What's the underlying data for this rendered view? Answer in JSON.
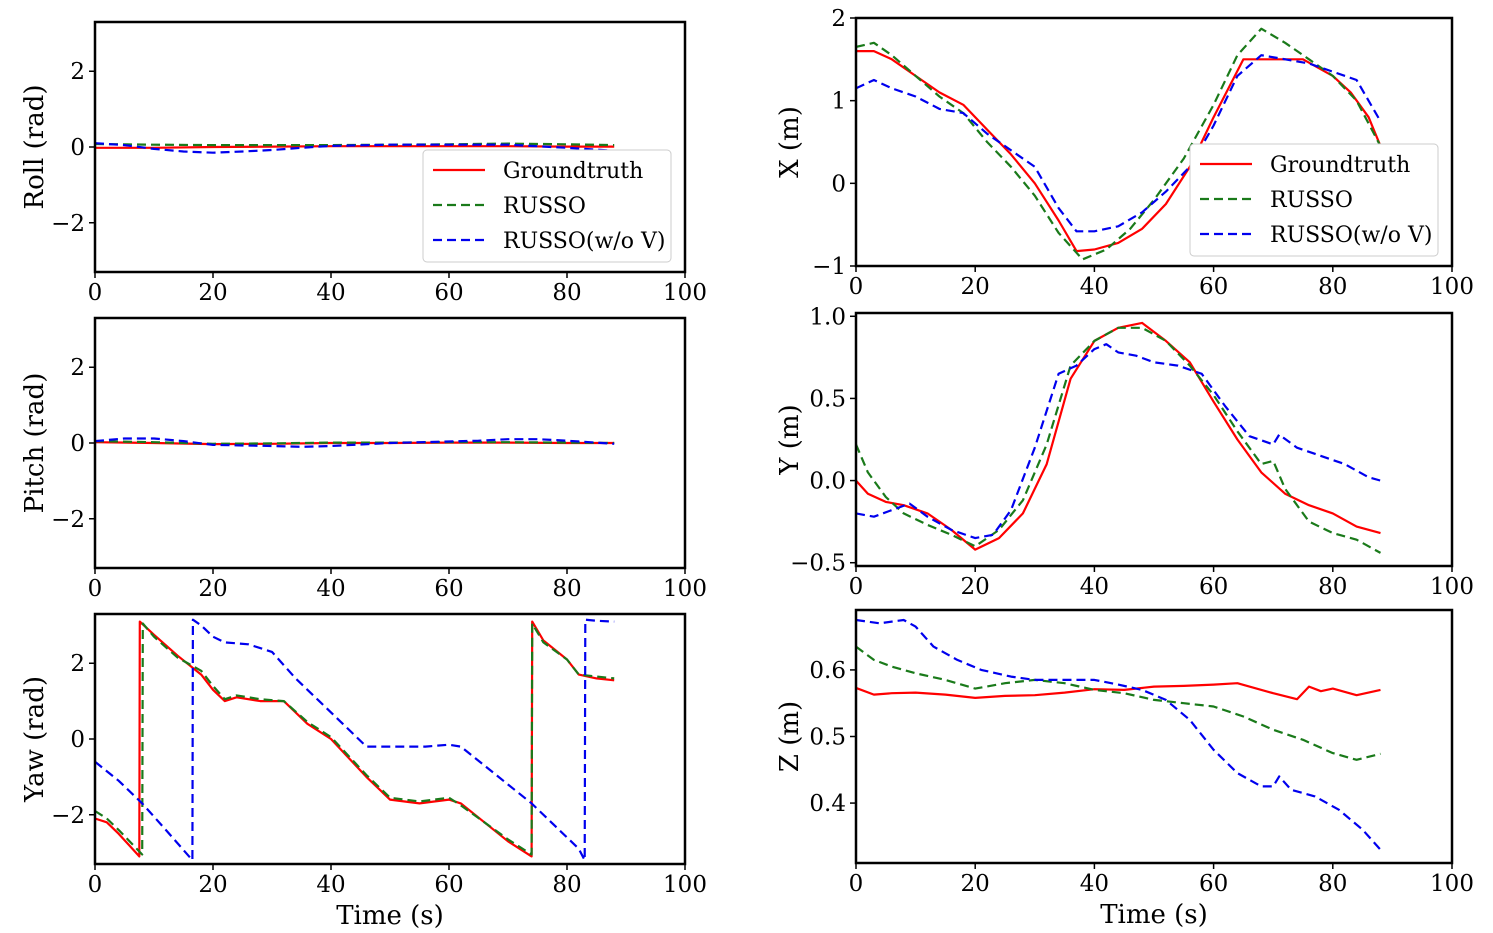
{
  "chart_data": [
    {
      "type": "line",
      "title": "",
      "xlabel": "",
      "ylabel": "Roll (rad)",
      "xlim": [
        0,
        100
      ],
      "ylim": [
        -3.3,
        3.3
      ],
      "xticks": [
        0,
        20,
        40,
        60,
        80,
        100
      ],
      "yticks": [
        -2,
        0,
        2
      ],
      "ytick_labels": [
        "−2",
        "0",
        "2"
      ],
      "legend": "bottom-right",
      "series": [
        {
          "name": "Groundtruth",
          "color": "#ff0000",
          "style": "solid",
          "x": [
            0,
            10,
            20,
            30,
            40,
            50,
            60,
            70,
            80,
            88
          ],
          "y": [
            -0.02,
            -0.02,
            0.0,
            0.01,
            0.02,
            0.02,
            0.02,
            0.02,
            0.01,
            0.01
          ]
        },
        {
          "name": "RUSSO",
          "color": "#1a7a1a",
          "style": "dashed",
          "x": [
            0,
            10,
            20,
            30,
            40,
            50,
            60,
            70,
            80,
            88
          ],
          "y": [
            0.08,
            0.06,
            0.05,
            0.05,
            0.05,
            0.06,
            0.07,
            0.09,
            0.07,
            0.05
          ]
        },
        {
          "name": "RUSSO(w/o V)",
          "color": "#0000ee",
          "style": "dashed",
          "x": [
            0,
            5,
            10,
            15,
            20,
            25,
            30,
            35,
            40,
            50,
            60,
            70,
            80,
            88
          ],
          "y": [
            0.1,
            0.05,
            -0.05,
            -0.12,
            -0.15,
            -0.12,
            -0.08,
            -0.02,
            0.03,
            0.06,
            0.06,
            0.06,
            -0.02,
            -0.1
          ]
        }
      ]
    },
    {
      "type": "line",
      "title": "",
      "xlabel": "",
      "ylabel": "X (m)",
      "xlim": [
        0,
        100
      ],
      "ylim": [
        -1.0,
        2.0
      ],
      "xticks": [
        0,
        20,
        40,
        60,
        80,
        100
      ],
      "yticks": [
        -1,
        0,
        1,
        2
      ],
      "ytick_labels": [
        "−1",
        "0",
        "1",
        "2"
      ],
      "legend": "bottom-right",
      "series": [
        {
          "name": "Groundtruth",
          "color": "#ff0000",
          "style": "solid",
          "x": [
            0,
            3,
            6,
            10,
            14,
            18,
            22,
            26,
            30,
            34,
            37,
            40,
            44,
            48,
            52,
            56,
            60,
            65,
            70,
            75,
            80,
            83,
            86,
            88
          ],
          "y": [
            1.6,
            1.6,
            1.5,
            1.3,
            1.1,
            0.95,
            0.65,
            0.35,
            0.0,
            -0.45,
            -0.82,
            -0.8,
            -0.72,
            -0.55,
            -0.25,
            0.2,
            0.8,
            1.5,
            1.5,
            1.5,
            1.3,
            1.1,
            0.8,
            0.45
          ]
        },
        {
          "name": "RUSSO",
          "color": "#1a7a1a",
          "style": "dashed",
          "x": [
            0,
            3,
            6,
            10,
            14,
            18,
            22,
            26,
            30,
            34,
            38,
            42,
            46,
            50,
            55,
            60,
            64,
            68,
            72,
            76,
            80,
            84,
            88
          ],
          "y": [
            1.65,
            1.7,
            1.55,
            1.3,
            1.05,
            0.85,
            0.5,
            0.2,
            -0.15,
            -0.6,
            -0.92,
            -0.8,
            -0.55,
            -0.2,
            0.3,
            0.95,
            1.55,
            1.87,
            1.7,
            1.5,
            1.3,
            1.0,
            0.45
          ]
        },
        {
          "name": "RUSSO(w/o V)",
          "color": "#0000ee",
          "style": "dashed",
          "x": [
            0,
            3,
            6,
            10,
            14,
            18,
            22,
            26,
            30,
            34,
            37,
            40,
            44,
            48,
            52,
            56,
            60,
            64,
            68,
            72,
            76,
            80,
            84,
            88
          ],
          "y": [
            1.15,
            1.25,
            1.15,
            1.05,
            0.9,
            0.85,
            0.6,
            0.4,
            0.2,
            -0.3,
            -0.58,
            -0.58,
            -0.52,
            -0.35,
            -0.1,
            0.2,
            0.7,
            1.3,
            1.55,
            1.5,
            1.45,
            1.35,
            1.25,
            0.75
          ]
        }
      ]
    },
    {
      "type": "line",
      "title": "",
      "xlabel": "",
      "ylabel": "Pitch (rad)",
      "xlim": [
        0,
        100
      ],
      "ylim": [
        -3.3,
        3.3
      ],
      "xticks": [
        0,
        20,
        40,
        60,
        80,
        100
      ],
      "yticks": [
        -2,
        0,
        2
      ],
      "ytick_labels": [
        "−2",
        "0",
        "2"
      ],
      "legend": "none",
      "series": [
        {
          "name": "Groundtruth",
          "color": "#ff0000",
          "style": "solid",
          "x": [
            0,
            10,
            20,
            30,
            40,
            50,
            60,
            70,
            80,
            88
          ],
          "y": [
            0.02,
            0.0,
            -0.03,
            -0.02,
            0.0,
            0.0,
            0.01,
            0.01,
            0.0,
            0.0
          ]
        },
        {
          "name": "RUSSO",
          "color": "#1a7a1a",
          "style": "dashed",
          "x": [
            0,
            10,
            20,
            30,
            40,
            50,
            60,
            70,
            80,
            88
          ],
          "y": [
            0.05,
            0.02,
            -0.02,
            -0.01,
            0.01,
            0.01,
            0.02,
            0.02,
            0.01,
            0.0
          ]
        },
        {
          "name": "RUSSO(w/o V)",
          "color": "#0000ee",
          "style": "dashed",
          "x": [
            0,
            5,
            10,
            15,
            20,
            30,
            35,
            40,
            50,
            60,
            65,
            70,
            75,
            80,
            88
          ],
          "y": [
            0.05,
            0.12,
            0.12,
            0.05,
            -0.05,
            -0.08,
            -0.1,
            -0.08,
            0.0,
            0.04,
            0.06,
            0.1,
            0.1,
            0.06,
            -0.02
          ]
        }
      ]
    },
    {
      "type": "line",
      "title": "",
      "xlabel": "",
      "ylabel": "Y (m)",
      "xlim": [
        0,
        100
      ],
      "ylim": [
        -0.52,
        1.02
      ],
      "xticks": [
        0,
        20,
        40,
        60,
        80,
        100
      ],
      "yticks": [
        -0.5,
        0.0,
        0.5,
        1.0
      ],
      "ytick_labels": [
        "−0.5",
        "0.0",
        "0.5",
        "1.0"
      ],
      "legend": "none",
      "series": [
        {
          "name": "Groundtruth",
          "color": "#ff0000",
          "style": "solid",
          "x": [
            0,
            2,
            5,
            8,
            12,
            16,
            20,
            24,
            28,
            32,
            36,
            40,
            44,
            48,
            52,
            56,
            60,
            64,
            68,
            72,
            76,
            80,
            84,
            88
          ],
          "y": [
            0.0,
            -0.08,
            -0.13,
            -0.15,
            -0.2,
            -0.3,
            -0.42,
            -0.35,
            -0.2,
            0.1,
            0.62,
            0.85,
            0.93,
            0.96,
            0.85,
            0.72,
            0.48,
            0.25,
            0.05,
            -0.08,
            -0.15,
            -0.2,
            -0.28,
            -0.32
          ]
        },
        {
          "name": "RUSSO",
          "color": "#1a7a1a",
          "style": "dashed",
          "x": [
            0,
            2,
            5,
            8,
            12,
            16,
            20,
            24,
            28,
            32,
            36,
            40,
            44,
            48,
            52,
            56,
            60,
            64,
            68,
            70,
            72,
            76,
            80,
            84,
            88
          ],
          "y": [
            0.22,
            0.05,
            -0.1,
            -0.2,
            -0.27,
            -0.33,
            -0.4,
            -0.3,
            -0.12,
            0.22,
            0.7,
            0.85,
            0.93,
            0.93,
            0.85,
            0.7,
            0.52,
            0.3,
            0.1,
            0.12,
            -0.05,
            -0.25,
            -0.32,
            -0.36,
            -0.44
          ]
        },
        {
          "name": "RUSSO(w/o V)",
          "color": "#0000ee",
          "style": "dashed",
          "x": [
            0,
            3,
            6,
            9,
            12,
            16,
            20,
            23,
            26,
            30,
            34,
            37,
            40,
            42,
            44,
            47,
            50,
            54,
            58,
            62,
            66,
            70,
            71,
            74,
            78,
            82,
            86,
            88
          ],
          "y": [
            -0.2,
            -0.22,
            -0.18,
            -0.14,
            -0.22,
            -0.3,
            -0.35,
            -0.33,
            -0.18,
            0.2,
            0.65,
            0.7,
            0.8,
            0.83,
            0.78,
            0.76,
            0.72,
            0.7,
            0.65,
            0.45,
            0.27,
            0.22,
            0.28,
            0.2,
            0.15,
            0.1,
            0.02,
            0.0
          ]
        }
      ]
    },
    {
      "type": "line",
      "title": "",
      "xlabel": "Time (s)",
      "ylabel": "Yaw (rad)",
      "xlim": [
        0,
        100
      ],
      "ylim": [
        -3.3,
        3.3
      ],
      "xticks": [
        0,
        20,
        40,
        60,
        80,
        100
      ],
      "yticks": [
        -2,
        0,
        2
      ],
      "ytick_labels": [
        "−2",
        "0",
        "2"
      ],
      "legend": "none",
      "series": [
        {
          "name": "Groundtruth",
          "color": "#ff0000",
          "style": "solid",
          "x": [
            0,
            2,
            4,
            7.5,
            7.6,
            10,
            14,
            18,
            20,
            22,
            24,
            28,
            32,
            36,
            40,
            46,
            50,
            55,
            60,
            62,
            66,
            70,
            74,
            74.1,
            76,
            80,
            82,
            85,
            88
          ],
          "y": [
            -2.1,
            -2.2,
            -2.5,
            -3.1,
            3.1,
            2.75,
            2.2,
            1.7,
            1.3,
            1.0,
            1.1,
            1.0,
            1.0,
            0.4,
            0.0,
            -1.0,
            -1.6,
            -1.7,
            -1.6,
            -1.7,
            -2.2,
            -2.7,
            -3.1,
            3.1,
            2.6,
            2.1,
            1.7,
            1.6,
            1.55
          ]
        },
        {
          "name": "RUSSO",
          "color": "#1a7a1a",
          "style": "dashed",
          "x": [
            0,
            2,
            4,
            8,
            8.1,
            10,
            14,
            18,
            20,
            22,
            24,
            28,
            32,
            36,
            40,
            46,
            50,
            55,
            60,
            62,
            66,
            70,
            74,
            74.1,
            76,
            80,
            82,
            85,
            88
          ],
          "y": [
            -1.9,
            -2.1,
            -2.4,
            -3.05,
            3.05,
            2.7,
            2.15,
            1.8,
            1.4,
            1.05,
            1.15,
            1.05,
            1.0,
            0.45,
            0.05,
            -0.95,
            -1.55,
            -1.65,
            -1.55,
            -1.75,
            -2.2,
            -2.65,
            -3.05,
            3.05,
            2.55,
            2.1,
            1.7,
            1.65,
            1.6
          ]
        },
        {
          "name": "RUSSO(w/o V)",
          "color": "#0000ee",
          "style": "dashed",
          "x": [
            0,
            4,
            8,
            12,
            16.5,
            16.6,
            18,
            20,
            22,
            26,
            30,
            34,
            38,
            42,
            46,
            50,
            52,
            56,
            60,
            62,
            66,
            70,
            74,
            78,
            82,
            83,
            83.1,
            85,
            88
          ],
          "y": [
            -0.6,
            -1.1,
            -1.7,
            -2.4,
            -3.2,
            3.15,
            3.0,
            2.7,
            2.55,
            2.5,
            2.3,
            1.6,
            1.0,
            0.4,
            -0.2,
            -0.2,
            -0.2,
            -0.2,
            -0.15,
            -0.2,
            -0.7,
            -1.2,
            -1.7,
            -2.3,
            -2.9,
            -3.2,
            3.15,
            3.12,
            3.1
          ]
        }
      ]
    },
    {
      "type": "line",
      "title": "",
      "xlabel": "Time (s)",
      "ylabel": "Z (m)",
      "xlim": [
        0,
        100
      ],
      "ylim": [
        0.31,
        0.69
      ],
      "xticks": [
        0,
        20,
        40,
        60,
        80,
        100
      ],
      "yticks": [
        0.4,
        0.5,
        0.6
      ],
      "ytick_labels": [
        "0.4",
        "0.5",
        "0.6"
      ],
      "legend": "none",
      "series": [
        {
          "name": "Groundtruth",
          "color": "#ff0000",
          "style": "solid",
          "x": [
            0,
            3,
            6,
            10,
            15,
            20,
            25,
            30,
            35,
            40,
            45,
            50,
            55,
            60,
            64,
            70,
            74,
            76,
            78,
            80,
            84,
            88
          ],
          "y": [
            0.573,
            0.563,
            0.565,
            0.566,
            0.563,
            0.558,
            0.561,
            0.562,
            0.566,
            0.571,
            0.57,
            0.575,
            0.576,
            0.578,
            0.58,
            0.565,
            0.556,
            0.575,
            0.568,
            0.572,
            0.562,
            0.57
          ]
        },
        {
          "name": "RUSSO",
          "color": "#1a7a1a",
          "style": "dashed",
          "x": [
            0,
            3,
            6,
            10,
            15,
            20,
            25,
            30,
            35,
            40,
            45,
            50,
            55,
            60,
            65,
            70,
            75,
            80,
            84,
            88
          ],
          "y": [
            0.635,
            0.615,
            0.605,
            0.595,
            0.585,
            0.572,
            0.58,
            0.585,
            0.58,
            0.57,
            0.565,
            0.555,
            0.55,
            0.545,
            0.53,
            0.51,
            0.495,
            0.475,
            0.465,
            0.474
          ]
        },
        {
          "name": "RUSSO(w/o V)",
          "color": "#0000ee",
          "style": "dashed",
          "x": [
            0,
            4,
            8,
            10,
            13,
            17,
            21,
            26,
            30,
            35,
            40,
            44,
            48,
            52,
            56,
            60,
            64,
            68,
            70,
            71,
            73,
            77,
            81,
            85,
            88
          ],
          "y": [
            0.675,
            0.67,
            0.675,
            0.665,
            0.635,
            0.615,
            0.6,
            0.59,
            0.585,
            0.585,
            0.585,
            0.578,
            0.57,
            0.555,
            0.525,
            0.48,
            0.445,
            0.425,
            0.425,
            0.44,
            0.42,
            0.41,
            0.39,
            0.36,
            0.33
          ]
        }
      ]
    }
  ]
}
